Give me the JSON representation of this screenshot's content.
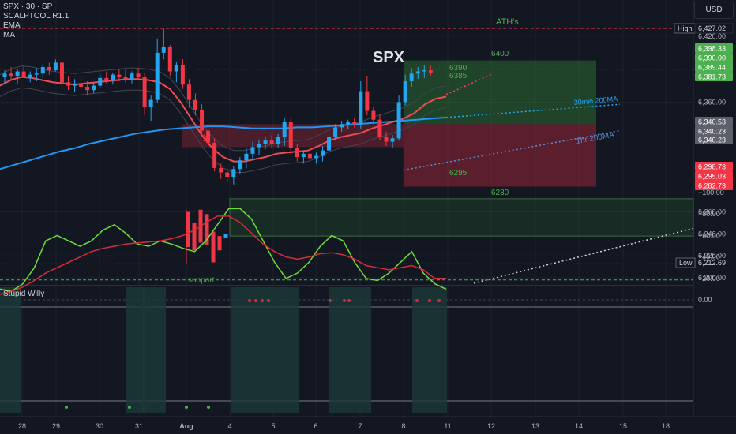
{
  "header": {
    "symbol_line": "SPX · 30 · SP",
    "indicator_1": "SCALPTOOL R1.1",
    "indicator_2": "EMA",
    "indicator_3": "MA",
    "currency_button": "USD",
    "oscillator_name": "Stupid Willy"
  },
  "colors": {
    "background": "#131722",
    "up_candle": "#22a6f2",
    "down_candle": "#f23645",
    "ema": "#ef4b54",
    "ma200": "#2196f3",
    "green_zone": "#2e7d32",
    "red_zone": "#b2283a",
    "osc_green": "#6fdc3b",
    "osc_red": "#d62c3a",
    "label_green": "#4caf50"
  },
  "chart_data": [
    {
      "type": "candlestick",
      "title": "SPX",
      "y_axis": {
        "ylim": [
          6193,
          6433
        ],
        "ticks": [
          "6,200.00",
          "6,220.00",
          "6,240.00",
          "6,260.00",
          "6,360.00",
          "6,420.00"
        ]
      },
      "x_axis": {
        "ticks": [
          "28",
          "29",
          "30",
          "31",
          "Aug",
          "4",
          "5",
          "6",
          "7",
          "8",
          "11",
          "12",
          "13",
          "14",
          "15",
          "18"
        ]
      },
      "ohlc": [
        [
          "28",
          6383,
          6389,
          6377,
          6386
        ],
        [
          "28",
          6386,
          6392,
          6380,
          6384
        ],
        [
          "28",
          6384,
          6390,
          6376,
          6388
        ],
        [
          "28",
          6388,
          6394,
          6382,
          6383
        ],
        [
          "28",
          6383,
          6388,
          6378,
          6385
        ],
        [
          "28",
          6385,
          6391,
          6379,
          6386
        ],
        [
          "29",
          6386,
          6395,
          6382,
          6392
        ],
        [
          "29",
          6392,
          6396,
          6385,
          6389
        ],
        [
          "29",
          6389,
          6399,
          6388,
          6396
        ],
        [
          "29",
          6396,
          6398,
          6373,
          6378
        ],
        [
          "29",
          6378,
          6384,
          6371,
          6375
        ],
        [
          "29",
          6375,
          6381,
          6369,
          6377
        ],
        [
          "29",
          6377,
          6383,
          6372,
          6374
        ],
        [
          "29",
          6374,
          6379,
          6366,
          6371
        ],
        [
          "29",
          6371,
          6378,
          6368,
          6375
        ],
        [
          "30",
          6375,
          6386,
          6373,
          6382
        ],
        [
          "30",
          6382,
          6388,
          6377,
          6380
        ],
        [
          "30",
          6380,
          6387,
          6376,
          6385
        ],
        [
          "30",
          6385,
          6390,
          6379,
          6383
        ],
        [
          "30",
          6383,
          6389,
          6378,
          6381
        ],
        [
          "30",
          6381,
          6388,
          6377,
          6386
        ],
        [
          "30",
          6386,
          6391,
          6381,
          6383
        ],
        [
          "30",
          6383,
          6387,
          6348,
          6356
        ],
        [
          "30",
          6356,
          6366,
          6343,
          6362
        ],
        [
          "31",
          6362,
          6418,
          6359,
          6405
        ],
        [
          "31",
          6405,
          6427,
          6399,
          6410
        ],
        [
          "31",
          6410,
          6412,
          6384,
          6388
        ],
        [
          "31",
          6388,
          6397,
          6378,
          6394
        ],
        [
          "31",
          6394,
          6399,
          6372,
          6376
        ],
        [
          "31",
          6376,
          6381,
          6355,
          6362
        ],
        [
          "31",
          6362,
          6368,
          6348,
          6353
        ],
        [
          "Aug",
          6353,
          6358,
          6330,
          6334
        ],
        [
          "Aug",
          6334,
          6340,
          6318,
          6323
        ],
        [
          "Aug",
          6323,
          6327,
          6297,
          6300
        ],
        [
          "Aug",
          6300,
          6304,
          6290,
          6296
        ],
        [
          "Aug",
          6296,
          6300,
          6287,
          6292
        ],
        [
          "Aug",
          6292,
          6302,
          6285,
          6299
        ],
        [
          "Aug",
          6299,
          6310,
          6295,
          6307
        ],
        [
          "Aug",
          6307,
          6318,
          6300,
          6313
        ],
        [
          "4",
          6313,
          6324,
          6308,
          6319
        ],
        [
          "4",
          6319,
          6326,
          6312,
          6322
        ],
        [
          "4",
          6322,
          6328,
          6317,
          6325
        ],
        [
          "4",
          6325,
          6330,
          6318,
          6322
        ],
        [
          "4",
          6322,
          6331,
          6318,
          6328
        ],
        [
          "5",
          6328,
          6346,
          6320,
          6342
        ],
        [
          "5",
          6342,
          6346,
          6315,
          6318
        ],
        [
          "5",
          6318,
          6322,
          6306,
          6310
        ],
        [
          "5",
          6310,
          6316,
          6304,
          6313
        ],
        [
          "5",
          6313,
          6318,
          6306,
          6309
        ],
        [
          "5",
          6309,
          6314,
          6304,
          6311
        ],
        [
          "6",
          6311,
          6320,
          6306,
          6316
        ],
        [
          "6",
          6316,
          6332,
          6312,
          6328
        ],
        [
          "6",
          6328,
          6340,
          6325,
          6337
        ],
        [
          "6",
          6337,
          6343,
          6333,
          6340
        ],
        [
          "6",
          6340,
          6344,
          6335,
          6342
        ],
        [
          "6",
          6342,
          6346,
          6337,
          6340
        ],
        [
          "7",
          6340,
          6379,
          6336,
          6370
        ],
        [
          "7",
          6370,
          6384,
          6348,
          6352
        ],
        [
          "7",
          6352,
          6356,
          6340,
          6344
        ],
        [
          "7",
          6344,
          6349,
          6325,
          6328
        ],
        [
          "7",
          6328,
          6333,
          6320,
          6324
        ],
        [
          "7",
          6324,
          6330,
          6318,
          6327
        ],
        [
          "8",
          6327,
          6366,
          6325,
          6360
        ],
        [
          "8",
          6360,
          6385,
          6357,
          6379
        ],
        [
          "8",
          6379,
          6391,
          6374,
          6386
        ],
        [
          "8",
          6386,
          6392,
          6381,
          6388
        ],
        [
          "8",
          6388,
          6394,
          6382,
          6389
        ],
        [
          "8",
          6389,
          6393,
          6384,
          6387
        ]
      ],
      "band_labels": {
        "price_tags_right": [
          "6,398.33",
          "6,390.00",
          "6,389.44",
          "6,381.73",
          "6,340.53",
          "6,340.23",
          "6,340.23",
          "6,298.73",
          "6,295.03",
          "6,282.73"
        ]
      },
      "annotations": {
        "title_text": "SPX",
        "ath_label": "ATH's",
        "target_high": "6400",
        "entry_high": "6390",
        "entry_low": "6385",
        "stop": "6295",
        "zone_low": "6280",
        "support": "support",
        "ma30_label": "30min 200MA",
        "ma1h_label": "1hr 200MA",
        "high_tag": "High",
        "high_value": "6,427.02",
        "low_tag": "Low",
        "low_value": "6,212.69"
      },
      "ema": [
        6375,
        6380,
        6383,
        6382,
        6380,
        6378,
        6377,
        6376,
        6377,
        6378,
        6379,
        6380,
        6381,
        6381,
        6380,
        6378,
        6372,
        6360,
        6345,
        6330,
        6318,
        6310,
        6306,
        6306,
        6308,
        6310,
        6313,
        6314,
        6315,
        6316,
        6320,
        6325,
        6328,
        6330,
        6332,
        6336,
        6339,
        6342,
        6345,
        6350,
        6358,
        6363,
        6365
      ],
      "ma200": [
        6299,
        6303,
        6307,
        6311,
        6315,
        6318,
        6322,
        6325,
        6328,
        6331,
        6333,
        6335,
        6336,
        6337,
        6338,
        6338,
        6337,
        6336,
        6336,
        6336,
        6337,
        6337,
        6338,
        6339,
        6340,
        6341,
        6342,
        6343,
        6344,
        6345,
        6346
      ]
    },
    {
      "type": "line",
      "title": "Stupid Willy",
      "ylim": [
        -100,
        0
      ],
      "y_ticks": [
        "0.00",
        "−20.00",
        "−40.00",
        "−60.00",
        "−80.00",
        "−100.00"
      ],
      "series": [
        {
          "color": "#6fdc3b",
          "values": [
            -10,
            -8,
            -15,
            -30,
            -55,
            -60,
            -55,
            -50,
            -55,
            -65,
            -70,
            -62,
            -52,
            -50,
            -55,
            -52,
            -48,
            -45,
            -55,
            -70,
            -85,
            -85,
            -75,
            -55,
            -35,
            -20,
            -25,
            -35,
            -50,
            -60,
            -55,
            -35,
            -20,
            -18,
            -25,
            -35,
            -45,
            -25,
            -15,
            -10
          ]
        },
        {
          "color": "#d62c3a",
          "values": [
            -5,
            -8,
            -12,
            -18,
            -25,
            -30,
            -35,
            -40,
            -45,
            -48,
            -50,
            -52,
            -53,
            -54,
            -55,
            -57,
            -60,
            -65,
            -72,
            -78,
            -78,
            -72,
            -62,
            -52,
            -45,
            -40,
            -38,
            -40,
            -43,
            -44,
            -42,
            -38,
            -32,
            -30,
            -28,
            -30,
            -32,
            -28,
            -20,
            -20
          ]
        }
      ]
    }
  ]
}
